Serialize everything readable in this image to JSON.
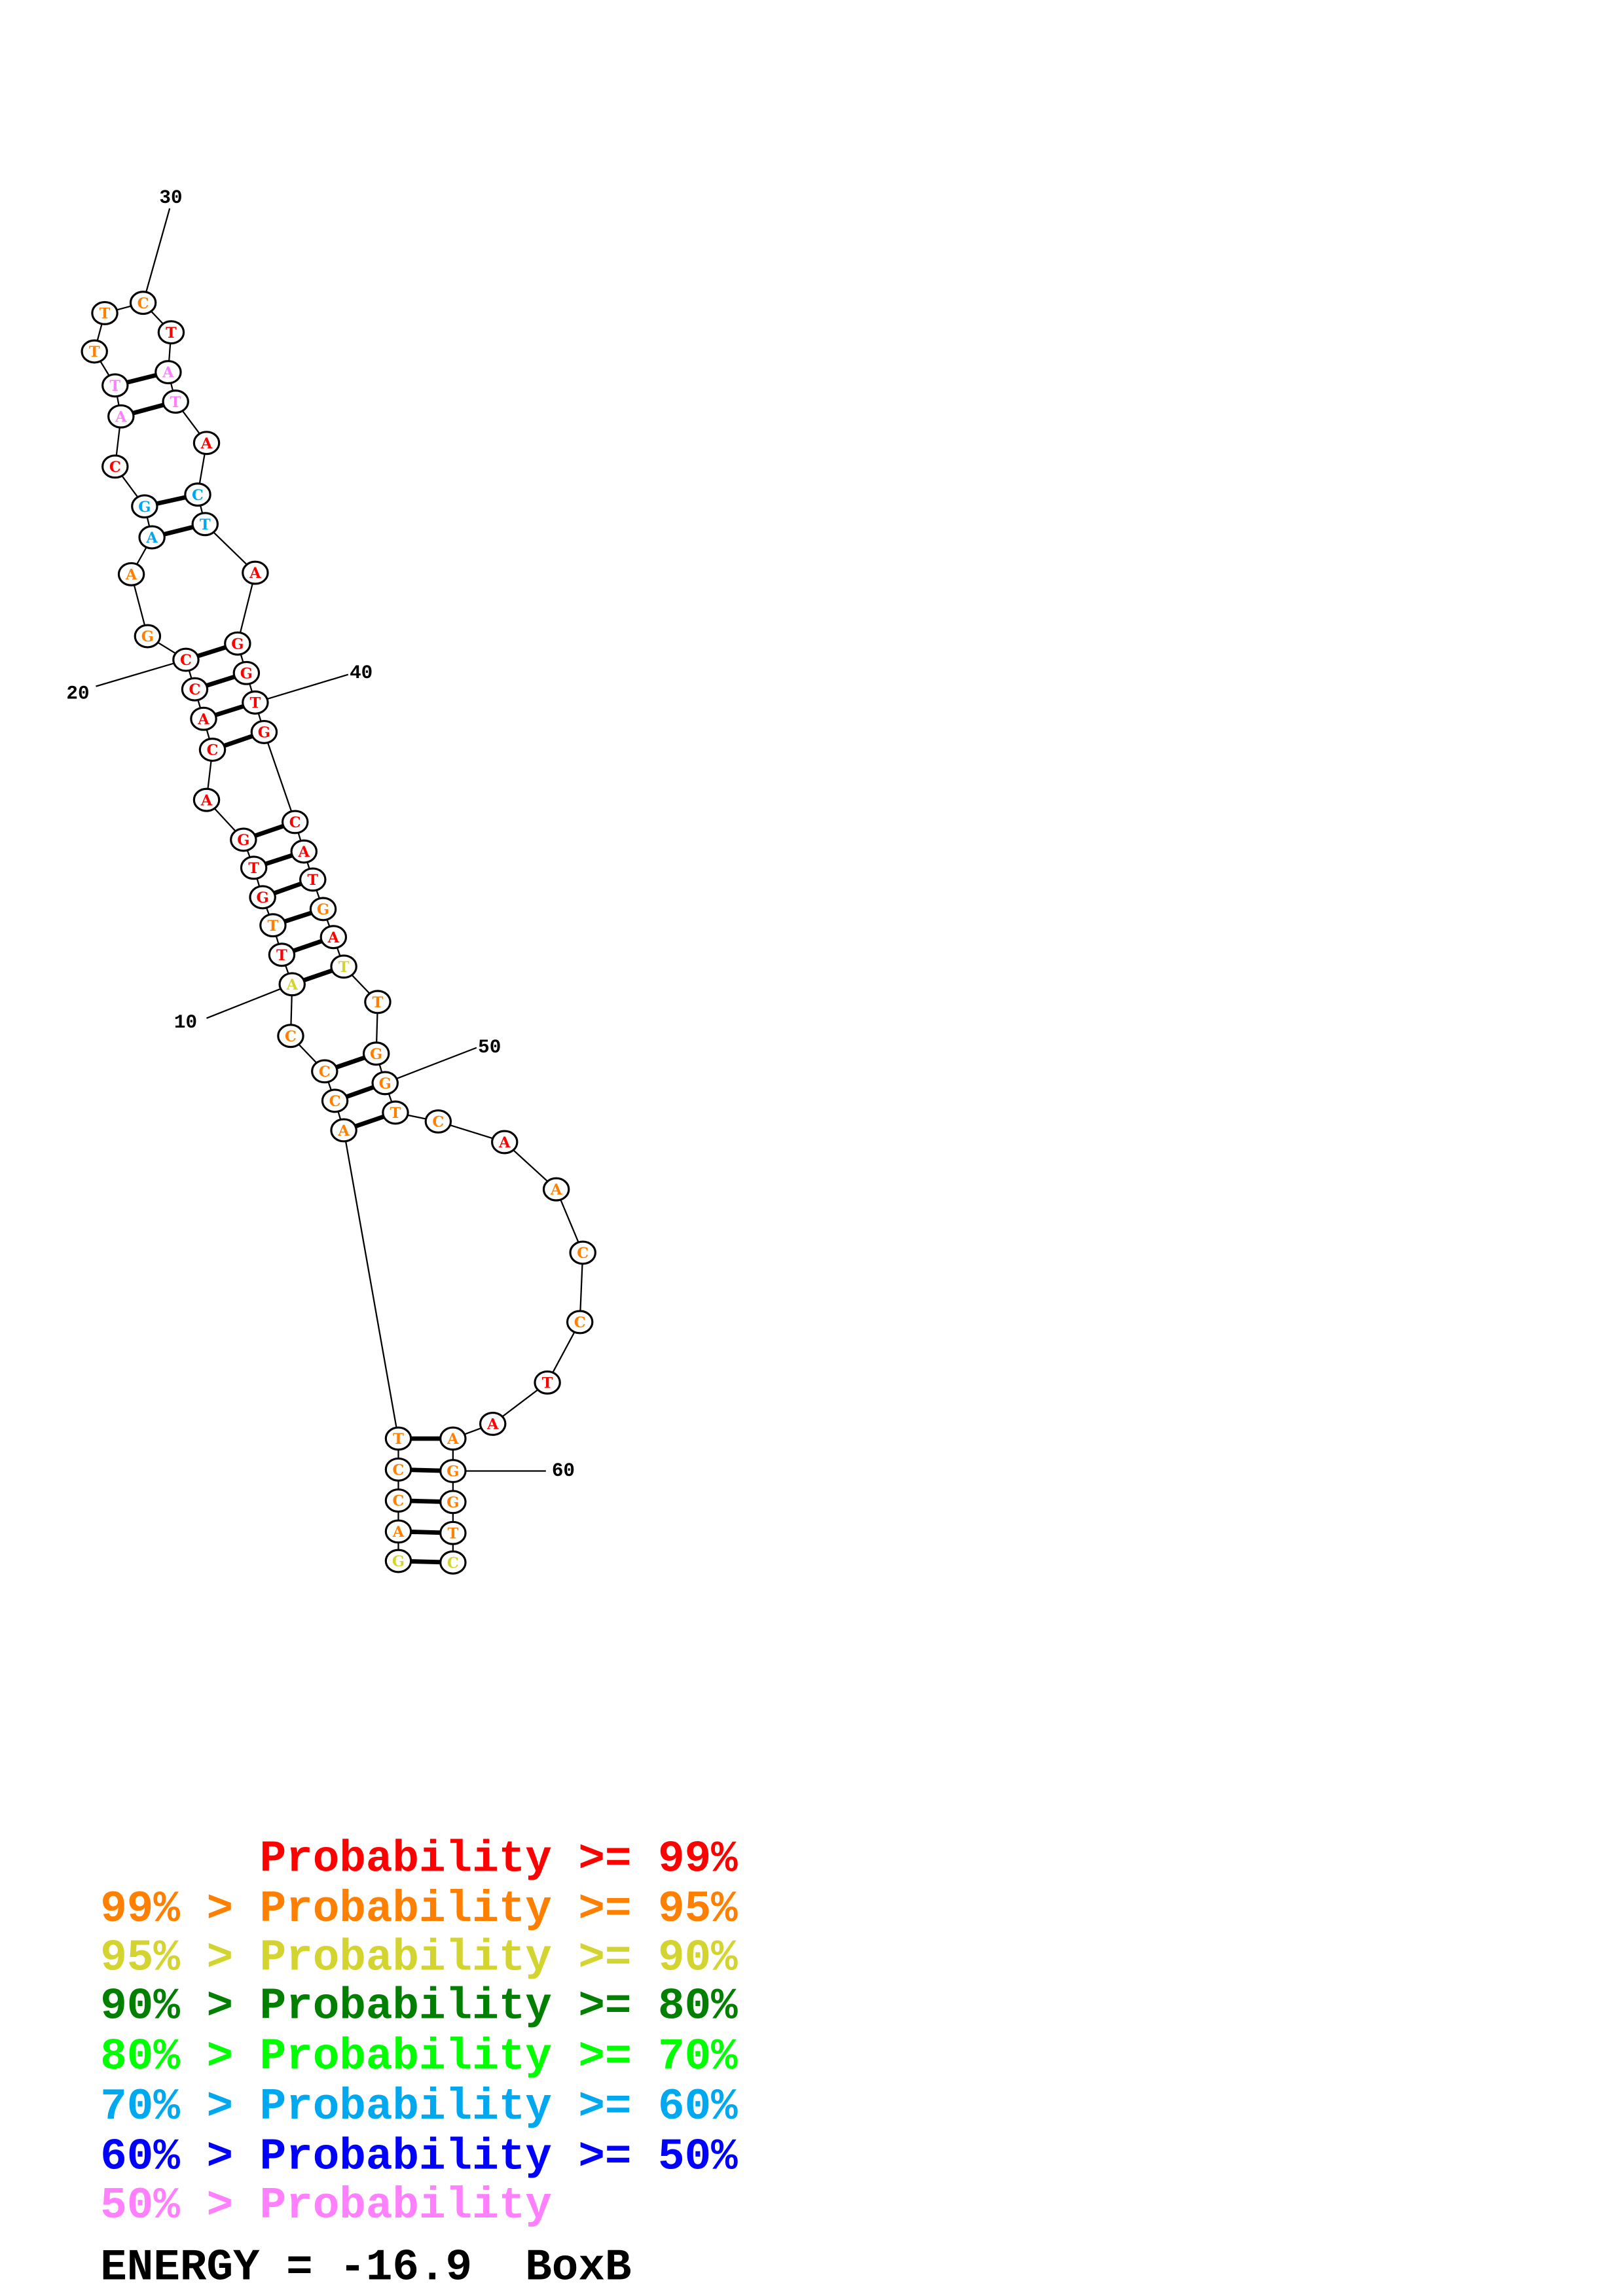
{
  "title": "BoxB",
  "energy_label": "ENERGY = -16.9  BoxB",
  "energy": -16.9,
  "colors": {
    "p99": "#ff0000",
    "p95": "#ff8000",
    "p90": "#d4d430",
    "p80": "#007f00",
    "p70": "#00ff00",
    "p60": "#00a8f0",
    "p50": "#0000ff",
    "plow": "#ff80ff"
  },
  "legend": [
    {
      "text": "      Probability >= 99%",
      "color_key": "p99"
    },
    {
      "text": "99% > Probability >= 95%",
      "color_key": "p95"
    },
    {
      "text": "95% > Probability >= 90%",
      "color_key": "p90"
    },
    {
      "text": "90% > Probability >= 80%",
      "color_key": "p80"
    },
    {
      "text": "80% > Probability >= 70%",
      "color_key": "p70"
    },
    {
      "text": "70% > Probability >= 60%",
      "color_key": "p60"
    },
    {
      "text": "60% > Probability >= 50%",
      "color_key": "p50"
    },
    {
      "text": "50% > Probability",
      "color_key": "plow"
    }
  ],
  "sequence": [
    "G",
    "A",
    "C",
    "C",
    "T",
    "A",
    "C",
    "C",
    "C",
    "A",
    "T",
    "T",
    "G",
    "T",
    "G",
    "A",
    "C",
    "A",
    "C",
    "C",
    "G",
    "A",
    "A",
    "G",
    "C",
    "A",
    "T",
    "T",
    "T",
    "C",
    "T",
    "A",
    "T",
    "A",
    "C",
    "T",
    "A",
    "G",
    "G",
    "T",
    "G",
    "C",
    "A",
    "T",
    "G",
    "A",
    "T",
    "T",
    "G",
    "G",
    "T",
    "C",
    "A",
    "A",
    "C",
    "C",
    "T",
    "A",
    "A",
    "G",
    "G",
    "T",
    "C"
  ],
  "probability_class": [
    "p90",
    "p95",
    "p95",
    "p95",
    "p95",
    "p95",
    "p95",
    "p95",
    "p95",
    "p90",
    "p99",
    "p95",
    "p99",
    "p99",
    "p99",
    "p99",
    "p99",
    "p99",
    "p99",
    "p99",
    "p95",
    "p95",
    "p60",
    "p60",
    "p99",
    "plow",
    "plow",
    "p95",
    "p95",
    "p95",
    "p99",
    "plow",
    "plow",
    "p99",
    "p60",
    "p60",
    "p99",
    "p99",
    "p99",
    "p99",
    "p99",
    "p99",
    "p99",
    "p99",
    "p95",
    "p99",
    "p90",
    "p95",
    "p95",
    "p95",
    "p95",
    "p95",
    "p99",
    "p95",
    "p95",
    "p95",
    "p99",
    "p99",
    "p95",
    "p95",
    "p95",
    "p95",
    "p90"
  ],
  "pairs": [
    [
      1,
      63
    ],
    [
      2,
      62
    ],
    [
      3,
      61
    ],
    [
      4,
      60
    ],
    [
      5,
      59
    ],
    [
      6,
      51
    ],
    [
      7,
      50
    ],
    [
      8,
      49
    ],
    [
      10,
      47
    ],
    [
      11,
      46
    ],
    [
      12,
      45
    ],
    [
      13,
      44
    ],
    [
      14,
      43
    ],
    [
      15,
      42
    ],
    [
      17,
      41
    ],
    [
      18,
      40
    ],
    [
      19,
      39
    ],
    [
      20,
      38
    ],
    [
      23,
      36
    ],
    [
      24,
      35
    ],
    [
      26,
      33
    ],
    [
      27,
      32
    ]
  ],
  "position_labels": [
    "10",
    "20",
    "30",
    "40",
    "50",
    "60"
  ]
}
